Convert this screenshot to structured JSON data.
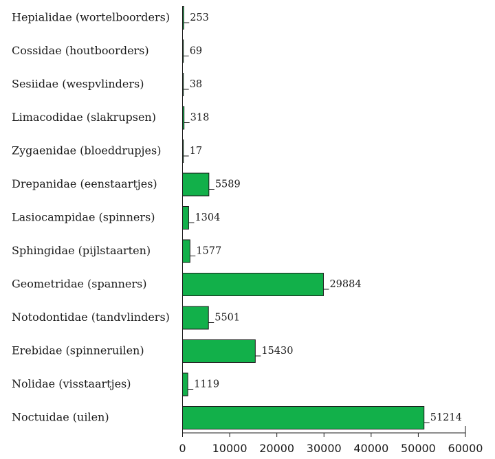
{
  "chart_data": {
    "type": "bar",
    "orientation": "horizontal",
    "categories": [
      "Hepialidae (wortelboorders)",
      "Cossidae (houtboorders)",
      "Sesiidae (wespvlinders)",
      "Limacodidae (slakrupsen)",
      "Zygaenidae (bloeddrupjes)",
      "Drepanidae (eenstaartjes)",
      "Lasiocampidae (spinners)",
      "Sphingidae (pijlstaarten)",
      "Geometridae (spanners)",
      "Notodontidae (tandvlinders)",
      "Erebidae (spinneruilen)",
      "Nolidae (visstaartjes)",
      "Noctuidae (uilen)"
    ],
    "values": [
      253,
      69,
      38,
      318,
      17,
      5589,
      1304,
      1577,
      29884,
      5501,
      15430,
      1119,
      51214
    ],
    "value_labels": [
      "253",
      "69",
      "38",
      "318",
      "17",
      "5589",
      "1304",
      "1577",
      "29884",
      "5501",
      "15430",
      "1119",
      "51214"
    ],
    "x_ticks": [
      "0",
      "10000",
      "20000",
      "30000",
      "40000",
      "50000",
      "60000"
    ],
    "xlim": [
      0,
      60000
    ],
    "title": "",
    "xlabel": "",
    "ylabel": "",
    "grid": false,
    "legend": "none",
    "bar_color": "#12b04a",
    "bar_edge_color": "#1a1a1a"
  }
}
